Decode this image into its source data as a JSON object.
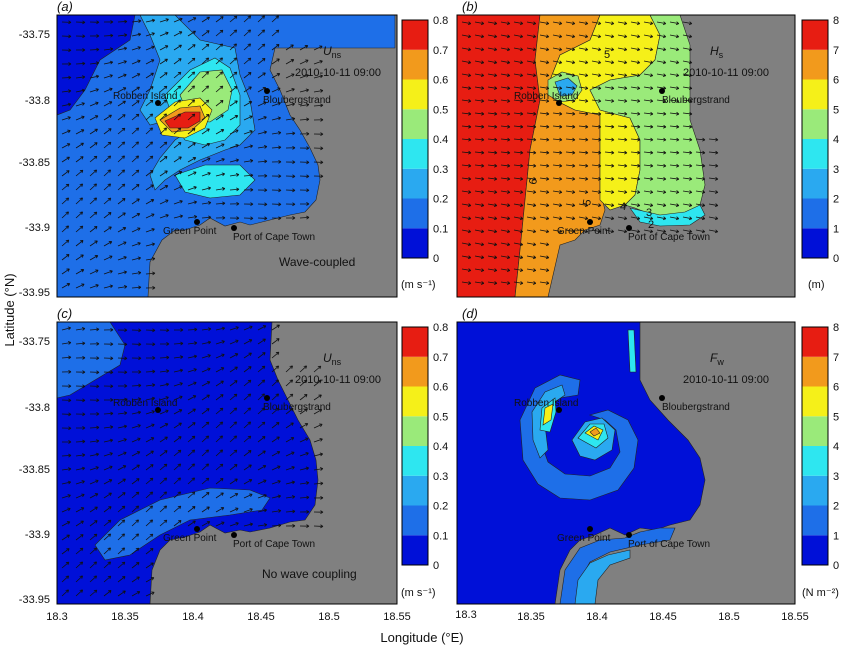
{
  "figure": {
    "ylabel": "Latitude (°N)",
    "xlabel": "Longitude (°E)",
    "yticks": [
      "-33.75",
      "-33.8",
      "-33.85",
      "-33.9",
      "-33.95"
    ],
    "xticks": [
      "18.3",
      "18.35",
      "18.4",
      "18.45",
      "18.5",
      "18.55"
    ],
    "colors": {
      "land": "#808080",
      "deep_blue": "#0010d8",
      "mid_blue": "#1e6fe8",
      "light_blue": "#2aa9f0",
      "cyan": "#2ee6f0",
      "green": "#9aea7a",
      "yellow": "#f5f019",
      "orange": "#f29a1c",
      "red": "#e71d12",
      "darkred": "#8a0b0b"
    },
    "colorbar_colors": [
      "#0010d8",
      "#1e6fe8",
      "#2aa9f0",
      "#2ee6f0",
      "#9aea7a",
      "#f5f019",
      "#f29a1c",
      "#e71d12",
      "#8a0b0b"
    ]
  },
  "places": {
    "robben": "Robben Island",
    "blouberg": "Bloubergstrand",
    "green": "Green Point",
    "port": "Port of Cape Town"
  },
  "panels": {
    "a": {
      "letter": "(a)",
      "var": "U",
      "sub": "ns",
      "time": "2010-10-11 09:00",
      "note": "Wave-coupled",
      "unit": "(m s⁻¹)",
      "cbar_ticks": [
        "0",
        "0.1",
        "0.2",
        "0.3",
        "0.4",
        "0.5",
        "0.6",
        "0.7",
        "0.8"
      ]
    },
    "b": {
      "letter": "(b)",
      "var": "H",
      "sub": "s",
      "time": "2010-10-11 09:00",
      "note": "",
      "unit": "(m)",
      "cbar_ticks": [
        "0",
        "1",
        "2",
        "3",
        "4",
        "5",
        "6",
        "7",
        "8"
      ],
      "contour_labels": [
        "6",
        "5",
        "5",
        "4",
        "3",
        "2"
      ]
    },
    "c": {
      "letter": "(c)",
      "var": "U",
      "sub": "ns",
      "time": "2010-10-11 09:00",
      "note": "No wave coupling",
      "unit": "(m s⁻¹)",
      "cbar_ticks": [
        "0",
        "0.1",
        "0.2",
        "0.3",
        "0.4",
        "0.5",
        "0.6",
        "0.7",
        "0.8"
      ]
    },
    "d": {
      "letter": "(d)",
      "var": "F",
      "sub": "w",
      "time": "2010-10-11 09:00",
      "note": "",
      "unit": "(N m⁻²)",
      "cbar_ticks": [
        "0",
        "1",
        "2",
        "3",
        "4",
        "5",
        "6",
        "7",
        "8"
      ]
    }
  }
}
